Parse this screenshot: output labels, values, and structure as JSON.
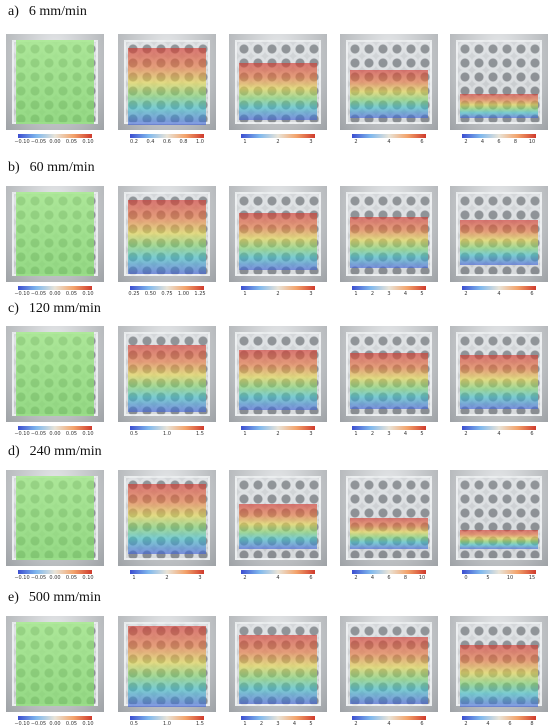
{
  "rows": [
    {
      "letter": "a)",
      "speed": "6 mm/min",
      "panels": [
        {
          "ticks": [
            "−0.10",
            "−0.05",
            "0.00",
            "0.05",
            "0.10"
          ]
        },
        {
          "ticks": [
            "0.2",
            "0.4",
            "0.6",
            "0.8",
            "1.0"
          ]
        },
        {
          "ticks": [
            "1",
            "2",
            "3"
          ]
        },
        {
          "ticks": [
            "2",
            "4",
            "6"
          ]
        },
        {
          "ticks": [
            "2",
            "4",
            "6",
            "8",
            "10"
          ]
        }
      ]
    },
    {
      "letter": "b)",
      "speed": "60 mm/min",
      "panels": [
        {
          "ticks": [
            "−0.10",
            "−0.05",
            "0.00",
            "0.05",
            "0.10"
          ]
        },
        {
          "ticks": [
            "0.25",
            "0.50",
            "0.75",
            "1.00",
            "1.25"
          ]
        },
        {
          "ticks": [
            "1",
            "2",
            "3"
          ]
        },
        {
          "ticks": [
            "1",
            "2",
            "3",
            "4",
            "5"
          ]
        },
        {
          "ticks": [
            "2",
            "4",
            "6"
          ]
        }
      ]
    },
    {
      "letter": "c)",
      "speed": "120 mm/min",
      "panels": [
        {
          "ticks": [
            "−0.10",
            "−0.05",
            "0.00",
            "0.05",
            "0.10"
          ]
        },
        {
          "ticks": [
            "0.5",
            "1.0",
            "1.5"
          ]
        },
        {
          "ticks": [
            "1",
            "2",
            "3"
          ]
        },
        {
          "ticks": [
            "1",
            "2",
            "3",
            "4",
            "5"
          ]
        },
        {
          "ticks": [
            "2",
            "4",
            "6"
          ]
        }
      ]
    },
    {
      "letter": "d)",
      "speed": "240 mm/min",
      "panels": [
        {
          "ticks": [
            "−0.10",
            "−0.05",
            "0.00",
            "0.05",
            "0.10"
          ]
        },
        {
          "ticks": [
            "1",
            "2",
            "3"
          ]
        },
        {
          "ticks": [
            "2",
            "4",
            "6"
          ]
        },
        {
          "ticks": [
            "2",
            "4",
            "6",
            "8",
            "10"
          ]
        },
        {
          "ticks": [
            "0",
            "5",
            "10",
            "15"
          ]
        }
      ]
    },
    {
      "letter": "e)",
      "speed": "500 mm/min",
      "panels": [
        {
          "ticks": [
            "−0.10",
            "−0.05",
            "0.00",
            "0.05",
            "0.10"
          ]
        },
        {
          "ticks": [
            "0.5",
            "1.0",
            "1.5"
          ]
        },
        {
          "ticks": [
            "1",
            "2",
            "3",
            "4",
            "5"
          ]
        },
        {
          "ticks": [
            "2",
            "4",
            "6"
          ]
        },
        {
          "ticks": [
            "2",
            "4",
            "6",
            "8"
          ]
        }
      ]
    }
  ]
}
